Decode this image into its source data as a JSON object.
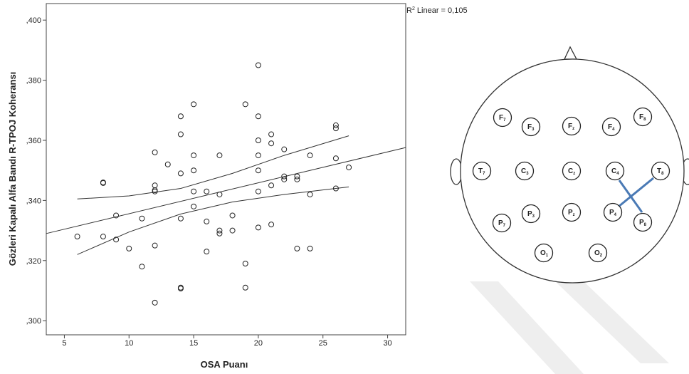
{
  "chart_data": {
    "type": "scatter",
    "x_label": "OSA Puanı",
    "y_label": "Gözleri Kapalı Alfa Bandı R-TPOJ Koheransı",
    "annotation": {
      "base": "R",
      "sup": "2",
      "text": " Linear = 0,105"
    },
    "xlim": [
      3.6,
      31.4
    ],
    "ylim": [
      0.2953,
      0.4055
    ],
    "xticks": [
      5,
      10,
      15,
      20,
      25,
      30
    ],
    "yticks": [
      {
        "value": 0.3,
        "label": ",300"
      },
      {
        "value": 0.32,
        "label": ",320"
      },
      {
        "value": 0.34,
        "label": ",340"
      },
      {
        "value": 0.36,
        "label": ",360"
      },
      {
        "value": 0.38,
        "label": ",380"
      },
      {
        "value": 0.4,
        "label": ",400"
      }
    ],
    "x": [
      6,
      8,
      8,
      8,
      9,
      9,
      10,
      11,
      11,
      12,
      12,
      12,
      12,
      12,
      12,
      13,
      14,
      14,
      14,
      14,
      14,
      14,
      15,
      15,
      15,
      15,
      15,
      16,
      16,
      16,
      17,
      17,
      17,
      17,
      18,
      18,
      19,
      19,
      19,
      20,
      20,
      20,
      20,
      20,
      20,
      20,
      21,
      21,
      21,
      21,
      22,
      22,
      22,
      23,
      23,
      23,
      24,
      24,
      24,
      26,
      26,
      26,
      26,
      27
    ],
    "values": [
      0.328,
      0.346,
      0.3458,
      0.328,
      0.335,
      0.327,
      0.324,
      0.334,
      0.318,
      0.356,
      0.345,
      0.3434,
      0.343,
      0.325,
      0.306,
      0.352,
      0.368,
      0.362,
      0.349,
      0.334,
      0.311,
      0.3107,
      0.372,
      0.355,
      0.35,
      0.343,
      0.338,
      0.343,
      0.333,
      0.323,
      0.355,
      0.342,
      0.33,
      0.329,
      0.335,
      0.33,
      0.372,
      0.319,
      0.311,
      0.385,
      0.368,
      0.36,
      0.355,
      0.35,
      0.343,
      0.331,
      0.362,
      0.359,
      0.345,
      0.332,
      0.357,
      0.348,
      0.347,
      0.348,
      0.347,
      0.324,
      0.355,
      0.342,
      0.324,
      0.365,
      0.364,
      0.354,
      0.344,
      0.351
    ],
    "fit": {
      "x": [
        3.6,
        31.4
      ],
      "y": [
        0.329,
        0.3576
      ]
    },
    "ci_upper": {
      "x": [
        6,
        10,
        14,
        18,
        22,
        27
      ],
      "y": [
        0.3405,
        0.3415,
        0.344,
        0.349,
        0.355,
        0.3615
      ]
    },
    "ci_lower": {
      "x": [
        6,
        10,
        14,
        18,
        22,
        27
      ],
      "y": [
        0.322,
        0.3295,
        0.3355,
        0.3395,
        0.342,
        0.3445
      ]
    }
  },
  "diagram": {
    "nodes": [
      {
        "letter": "F",
        "sub": "7"
      },
      {
        "letter": "F",
        "sub": "3"
      },
      {
        "letter": "F",
        "sub": "z"
      },
      {
        "letter": "F",
        "sub": "4"
      },
      {
        "letter": "F",
        "sub": "8"
      },
      {
        "letter": "T",
        "sub": "7"
      },
      {
        "letter": "C",
        "sub": "3"
      },
      {
        "letter": "C",
        "sub": "z"
      },
      {
        "letter": "C",
        "sub": "4"
      },
      {
        "letter": "T",
        "sub": "8"
      },
      {
        "letter": "P",
        "sub": "7"
      },
      {
        "letter": "P",
        "sub": "3"
      },
      {
        "letter": "P",
        "sub": "z"
      },
      {
        "letter": "P",
        "sub": "4"
      },
      {
        "letter": "P",
        "sub": "8"
      },
      {
        "letter": "O",
        "sub": "1"
      },
      {
        "letter": "O",
        "sub": "2"
      }
    ]
  }
}
